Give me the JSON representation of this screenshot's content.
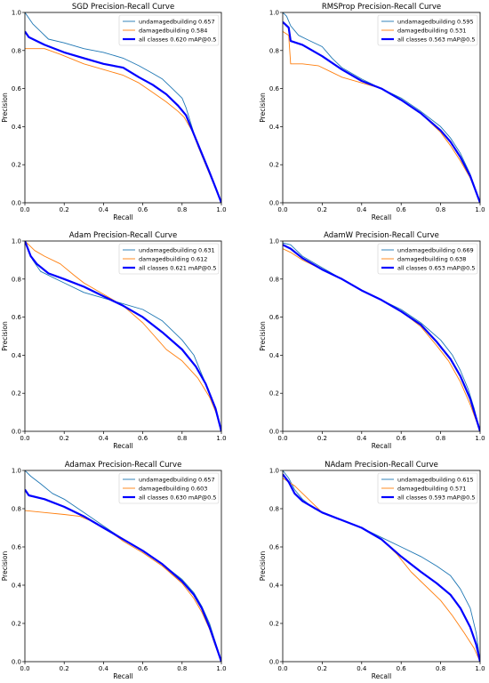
{
  "chart_data": [
    {
      "type": "line",
      "title": "SGD Precision-Recall Curve",
      "xlabel": "Recall",
      "ylabel": "Precision",
      "xlim": [
        0,
        1
      ],
      "ylim": [
        0,
        1
      ],
      "xticks": [
        "0.0",
        "0.2",
        "0.4",
        "0.6",
        "0.8",
        "1.0"
      ],
      "yticks": [
        "0.0",
        "0.2",
        "0.4",
        "0.6",
        "0.8",
        "1.0"
      ],
      "legend_position": "top-right",
      "grid": false,
      "series": [
        {
          "name": "undamagedbuilding 0.657",
          "color": "#1f77b4",
          "x": [
            0,
            0.02,
            0.04,
            0.08,
            0.12,
            0.2,
            0.3,
            0.4,
            0.5,
            0.58,
            0.65,
            0.7,
            0.75,
            0.8,
            0.82,
            0.85,
            0.88,
            0.92,
            0.96,
            1.0
          ],
          "y": [
            1.0,
            0.97,
            0.94,
            0.9,
            0.86,
            0.84,
            0.81,
            0.79,
            0.76,
            0.72,
            0.68,
            0.65,
            0.6,
            0.55,
            0.5,
            0.4,
            0.3,
            0.2,
            0.1,
            0.0
          ]
        },
        {
          "name": "damagedbuilding 0.584",
          "color": "#ff7f0e",
          "x": [
            0,
            0.05,
            0.1,
            0.18,
            0.3,
            0.4,
            0.5,
            0.58,
            0.65,
            0.72,
            0.78,
            0.81,
            0.85,
            0.88,
            0.92,
            0.96,
            1.0
          ],
          "y": [
            0.81,
            0.81,
            0.81,
            0.78,
            0.73,
            0.7,
            0.67,
            0.63,
            0.58,
            0.53,
            0.48,
            0.45,
            0.38,
            0.3,
            0.2,
            0.1,
            0.0
          ]
        },
        {
          "name": "all classes 0.620 mAP@0.5",
          "color": "#0000ff",
          "bold": true,
          "x": [
            0,
            0.02,
            0.06,
            0.1,
            0.2,
            0.3,
            0.4,
            0.5,
            0.58,
            0.65,
            0.72,
            0.78,
            0.82,
            0.86,
            0.9,
            0.94,
            0.97,
            1.0
          ],
          "y": [
            0.9,
            0.87,
            0.85,
            0.83,
            0.79,
            0.76,
            0.73,
            0.71,
            0.66,
            0.62,
            0.57,
            0.51,
            0.46,
            0.36,
            0.26,
            0.16,
            0.08,
            0.0
          ]
        }
      ]
    },
    {
      "type": "line",
      "title": "RMSProp Precision-Recall Curve",
      "xlabel": "Recall",
      "ylabel": "Precision",
      "xlim": [
        0,
        1
      ],
      "ylim": [
        0,
        1
      ],
      "xticks": [
        "0.0",
        "0.2",
        "0.4",
        "0.6",
        "0.8",
        "1.0"
      ],
      "yticks": [
        "0.0",
        "0.2",
        "0.4",
        "0.6",
        "0.8",
        "1.0"
      ],
      "legend_position": "top-right",
      "grid": false,
      "series": [
        {
          "name": "undamagedbuilding 0.595",
          "color": "#1f77b4",
          "x": [
            0,
            0.02,
            0.04,
            0.08,
            0.12,
            0.2,
            0.25,
            0.3,
            0.4,
            0.5,
            0.6,
            0.7,
            0.8,
            0.85,
            0.9,
            0.95,
            1.0
          ],
          "y": [
            1.0,
            0.98,
            0.93,
            0.88,
            0.86,
            0.82,
            0.76,
            0.71,
            0.65,
            0.6,
            0.55,
            0.48,
            0.4,
            0.34,
            0.26,
            0.15,
            0.0
          ]
        },
        {
          "name": "damagedbuilding 0.531",
          "color": "#ff7f0e",
          "x": [
            0,
            0.03,
            0.04,
            0.1,
            0.18,
            0.24,
            0.3,
            0.4,
            0.5,
            0.6,
            0.7,
            0.8,
            0.85,
            0.9,
            0.95,
            1.0
          ],
          "y": [
            0.9,
            0.88,
            0.73,
            0.73,
            0.72,
            0.69,
            0.66,
            0.63,
            0.6,
            0.54,
            0.47,
            0.37,
            0.3,
            0.22,
            0.13,
            0.0
          ]
        },
        {
          "name": "all classes 0.563 mAP@0.5",
          "color": "#0000ff",
          "bold": true,
          "x": [
            0,
            0.03,
            0.04,
            0.1,
            0.2,
            0.3,
            0.4,
            0.5,
            0.6,
            0.7,
            0.8,
            0.85,
            0.9,
            0.95,
            1.0
          ],
          "y": [
            0.95,
            0.92,
            0.85,
            0.83,
            0.77,
            0.7,
            0.64,
            0.6,
            0.54,
            0.47,
            0.38,
            0.32,
            0.24,
            0.14,
            0.0
          ]
        }
      ]
    },
    {
      "type": "line",
      "title": "Adam Precision-Recall Curve",
      "xlabel": "Recall",
      "ylabel": "Precision",
      "xlim": [
        0,
        1
      ],
      "ylim": [
        0,
        1
      ],
      "xticks": [
        "0.0",
        "0.2",
        "0.4",
        "0.6",
        "0.8",
        "1.0"
      ],
      "yticks": [
        "0.0",
        "0.2",
        "0.4",
        "0.6",
        "0.8",
        "1.0"
      ],
      "legend_position": "top-right",
      "grid": false,
      "series": [
        {
          "name": "undamagedbuilding 0.631",
          "color": "#1f77b4",
          "x": [
            0,
            0.02,
            0.04,
            0.08,
            0.14,
            0.2,
            0.3,
            0.4,
            0.5,
            0.6,
            0.7,
            0.8,
            0.86,
            0.9,
            0.95,
            1.0
          ],
          "y": [
            1.0,
            0.95,
            0.9,
            0.84,
            0.81,
            0.78,
            0.73,
            0.7,
            0.67,
            0.64,
            0.58,
            0.48,
            0.4,
            0.3,
            0.18,
            0.0
          ]
        },
        {
          "name": "damagedbuilding 0.612",
          "color": "#ff7f0e",
          "x": [
            0,
            0.05,
            0.1,
            0.18,
            0.25,
            0.3,
            0.4,
            0.5,
            0.6,
            0.66,
            0.72,
            0.8,
            0.88,
            0.94,
            0.98,
            1.0
          ],
          "y": [
            1.0,
            0.95,
            0.92,
            0.88,
            0.82,
            0.78,
            0.72,
            0.66,
            0.57,
            0.5,
            0.43,
            0.37,
            0.28,
            0.18,
            0.08,
            0.0
          ]
        },
        {
          "name": "all classes 0.621 mAP@0.5",
          "color": "#0000ff",
          "bold": true,
          "x": [
            0,
            0.03,
            0.06,
            0.12,
            0.2,
            0.3,
            0.4,
            0.5,
            0.6,
            0.7,
            0.8,
            0.87,
            0.92,
            0.97,
            1.0
          ],
          "y": [
            1.0,
            0.92,
            0.88,
            0.83,
            0.8,
            0.76,
            0.71,
            0.66,
            0.6,
            0.52,
            0.43,
            0.34,
            0.25,
            0.12,
            0.0
          ]
        }
      ]
    },
    {
      "type": "line",
      "title": "AdamW Precision-Recall Curve",
      "xlabel": "Recall",
      "ylabel": "Precision",
      "xlim": [
        0,
        1
      ],
      "ylim": [
        0,
        1
      ],
      "xticks": [
        "0.0",
        "0.2",
        "0.4",
        "0.6",
        "0.8",
        "1.0"
      ],
      "yticks": [
        "0.0",
        "0.2",
        "0.4",
        "0.6",
        "0.8",
        "1.0"
      ],
      "legend_position": "top-right",
      "grid": false,
      "series": [
        {
          "name": "undamagedbuilding 0.669",
          "color": "#1f77b4",
          "x": [
            0,
            0.04,
            0.1,
            0.2,
            0.3,
            0.4,
            0.5,
            0.6,
            0.7,
            0.8,
            0.86,
            0.9,
            0.94,
            0.97,
            1.0
          ],
          "y": [
            0.99,
            0.98,
            0.92,
            0.86,
            0.8,
            0.74,
            0.69,
            0.64,
            0.57,
            0.48,
            0.4,
            0.32,
            0.22,
            0.12,
            0.0
          ]
        },
        {
          "name": "damagedbuilding 0.638",
          "color": "#ff7f0e",
          "x": [
            0,
            0.04,
            0.1,
            0.2,
            0.3,
            0.4,
            0.5,
            0.6,
            0.7,
            0.78,
            0.84,
            0.9,
            0.95,
            1.0
          ],
          "y": [
            0.96,
            0.94,
            0.9,
            0.85,
            0.8,
            0.74,
            0.69,
            0.63,
            0.55,
            0.45,
            0.37,
            0.26,
            0.14,
            0.0
          ]
        },
        {
          "name": "all classes 0.653 mAP@0.5",
          "color": "#0000ff",
          "bold": true,
          "x": [
            0,
            0.04,
            0.1,
            0.2,
            0.3,
            0.4,
            0.5,
            0.6,
            0.7,
            0.78,
            0.85,
            0.9,
            0.95,
            1.0
          ],
          "y": [
            0.98,
            0.96,
            0.91,
            0.85,
            0.8,
            0.74,
            0.69,
            0.63,
            0.56,
            0.47,
            0.38,
            0.29,
            0.17,
            0.0
          ]
        }
      ]
    },
    {
      "type": "line",
      "title": "Adamax Precision-Recall Curve",
      "xlabel": "Recall",
      "ylabel": "Precision",
      "xlim": [
        0,
        1
      ],
      "ylim": [
        0,
        1
      ],
      "xticks": [
        "0.0",
        "0.2",
        "0.4",
        "0.6",
        "0.8",
        "1.0"
      ],
      "yticks": [
        "0.0",
        "0.2",
        "0.4",
        "0.6",
        "0.8",
        "1.0"
      ],
      "legend_position": "top-right",
      "grid": false,
      "series": [
        {
          "name": "undamagedbuilding 0.657",
          "color": "#1f77b4",
          "x": [
            0,
            0.03,
            0.08,
            0.14,
            0.2,
            0.3,
            0.4,
            0.5,
            0.6,
            0.7,
            0.8,
            0.86,
            0.9,
            0.94,
            0.97,
            1.0
          ],
          "y": [
            1.0,
            0.97,
            0.93,
            0.88,
            0.85,
            0.78,
            0.71,
            0.64,
            0.58,
            0.51,
            0.43,
            0.36,
            0.29,
            0.2,
            0.1,
            0.0
          ]
        },
        {
          "name": "damagedbuilding 0.603",
          "color": "#ff7f0e",
          "x": [
            0,
            0.1,
            0.2,
            0.28,
            0.35,
            0.42,
            0.5,
            0.6,
            0.7,
            0.8,
            0.86,
            0.9,
            0.94,
            0.97,
            1.0
          ],
          "y": [
            0.79,
            0.78,
            0.77,
            0.76,
            0.73,
            0.69,
            0.63,
            0.57,
            0.5,
            0.41,
            0.33,
            0.26,
            0.17,
            0.08,
            0.0
          ]
        },
        {
          "name": "all classes 0.630 mAP@0.5",
          "color": "#0000ff",
          "bold": true,
          "x": [
            0,
            0.02,
            0.1,
            0.2,
            0.3,
            0.4,
            0.5,
            0.6,
            0.7,
            0.8,
            0.86,
            0.9,
            0.94,
            0.97,
            1.0
          ],
          "y": [
            0.9,
            0.87,
            0.85,
            0.81,
            0.76,
            0.7,
            0.64,
            0.58,
            0.51,
            0.42,
            0.35,
            0.28,
            0.18,
            0.09,
            0.0
          ]
        }
      ]
    },
    {
      "type": "line",
      "title": "NAdam Precision-Recall Curve",
      "xlabel": "Recall",
      "ylabel": "Precision",
      "xlim": [
        0,
        1
      ],
      "ylim": [
        0,
        1
      ],
      "xticks": [
        "0.0",
        "0.2",
        "0.4",
        "0.6",
        "0.8",
        "1.0"
      ],
      "yticks": [
        "0.0",
        "0.2",
        "0.4",
        "0.6",
        "0.8",
        "1.0"
      ],
      "legend_position": "top-right",
      "grid": false,
      "series": [
        {
          "name": "undamagedbuilding 0.615",
          "color": "#1f77b4",
          "x": [
            0,
            0.03,
            0.06,
            0.1,
            0.16,
            0.2,
            0.3,
            0.4,
            0.5,
            0.6,
            0.7,
            0.78,
            0.85,
            0.9,
            0.95,
            0.98,
            1.0
          ],
          "y": [
            1.0,
            0.96,
            0.9,
            0.85,
            0.8,
            0.78,
            0.74,
            0.7,
            0.65,
            0.6,
            0.55,
            0.5,
            0.45,
            0.38,
            0.28,
            0.15,
            0.0
          ]
        },
        {
          "name": "damagedbuilding 0.571",
          "color": "#ff7f0e",
          "x": [
            0,
            0.03,
            0.06,
            0.12,
            0.2,
            0.3,
            0.4,
            0.5,
            0.58,
            0.65,
            0.72,
            0.8,
            0.86,
            0.92,
            0.97,
            1.0
          ],
          "y": [
            0.96,
            0.94,
            0.92,
            0.86,
            0.78,
            0.74,
            0.7,
            0.64,
            0.56,
            0.47,
            0.4,
            0.32,
            0.24,
            0.15,
            0.07,
            0.0
          ]
        },
        {
          "name": "all classes 0.593 mAP@0.5",
          "color": "#0000ff",
          "bold": true,
          "x": [
            0,
            0.03,
            0.06,
            0.1,
            0.2,
            0.3,
            0.4,
            0.5,
            0.6,
            0.7,
            0.78,
            0.85,
            0.9,
            0.95,
            0.98,
            1.0
          ],
          "y": [
            0.98,
            0.94,
            0.88,
            0.84,
            0.78,
            0.74,
            0.7,
            0.64,
            0.55,
            0.47,
            0.41,
            0.35,
            0.28,
            0.18,
            0.09,
            0.0
          ]
        }
      ]
    }
  ]
}
